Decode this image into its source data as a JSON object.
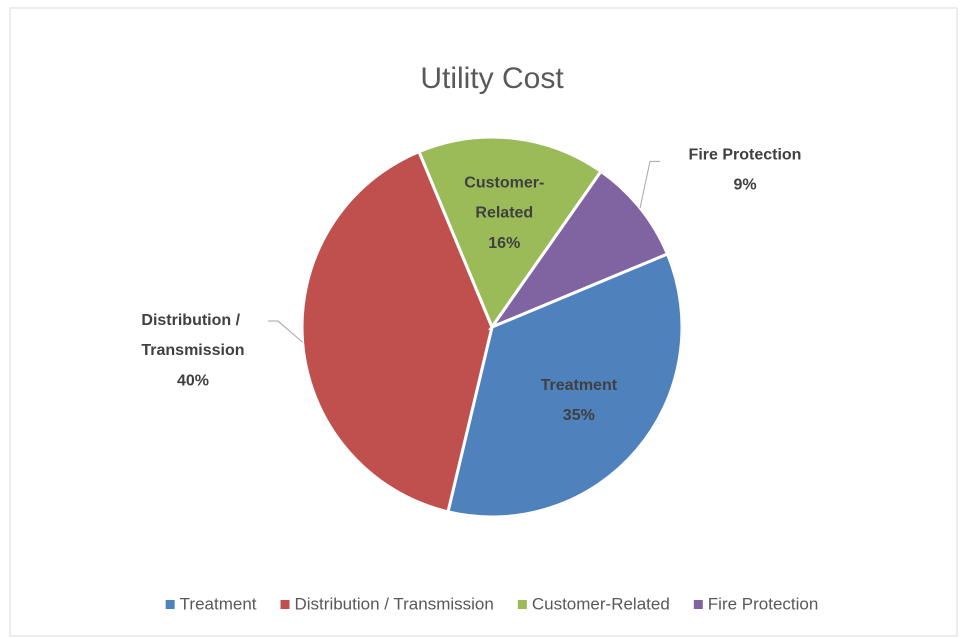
{
  "chart_data": {
    "type": "pie",
    "title": "Utility Cost",
    "categories": [
      "Treatment",
      "Distribution / Transmission",
      "Customer-Related",
      "Fire Protection"
    ],
    "values": [
      35,
      40,
      16,
      9
    ],
    "value_labels": [
      "35%",
      "40%",
      "16%",
      "9%"
    ],
    "colors": [
      "#4f81bd",
      "#c0504d",
      "#9bbb59",
      "#8064a2"
    ],
    "legend": "bottom"
  }
}
